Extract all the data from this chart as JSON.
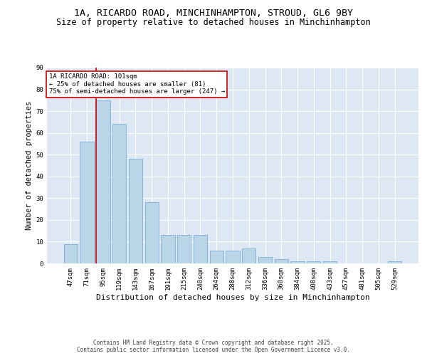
{
  "title1": "1A, RICARDO ROAD, MINCHINHAMPTON, STROUD, GL6 9BY",
  "title2": "Size of property relative to detached houses in Minchinhampton",
  "xlabel": "Distribution of detached houses by size in Minchinhampton",
  "ylabel": "Number of detached properties",
  "categories": [
    "47sqm",
    "71sqm",
    "95sqm",
    "119sqm",
    "143sqm",
    "167sqm",
    "191sqm",
    "215sqm",
    "240sqm",
    "264sqm",
    "288sqm",
    "312sqm",
    "336sqm",
    "360sqm",
    "384sqm",
    "408sqm",
    "433sqm",
    "457sqm",
    "481sqm",
    "505sqm",
    "529sqm"
  ],
  "values": [
    9,
    56,
    75,
    64,
    48,
    28,
    13,
    13,
    13,
    6,
    6,
    7,
    3,
    2,
    1,
    1,
    1,
    0,
    0,
    0,
    1
  ],
  "bar_color": "#bad4e8",
  "bar_edge_color": "#7aafd4",
  "red_line_index": 2,
  "annotation_text": "1A RICARDO ROAD: 101sqm\n← 25% of detached houses are smaller (81)\n75% of semi-detached houses are larger (247) →",
  "annotation_box_color": "#ffffff",
  "annotation_box_edge_color": "#cc0000",
  "background_color": "#dde8f4",
  "ylim": [
    0,
    90
  ],
  "yticks": [
    0,
    10,
    20,
    30,
    40,
    50,
    60,
    70,
    80,
    90
  ],
  "footer": "Contains HM Land Registry data © Crown copyright and database right 2025.\nContains public sector information licensed under the Open Government Licence v3.0.",
  "title1_fontsize": 9.5,
  "title2_fontsize": 8.5,
  "xlabel_fontsize": 8,
  "ylabel_fontsize": 7.5,
  "tick_fontsize": 6.5,
  "annotation_fontsize": 6.5,
  "footer_fontsize": 5.5
}
